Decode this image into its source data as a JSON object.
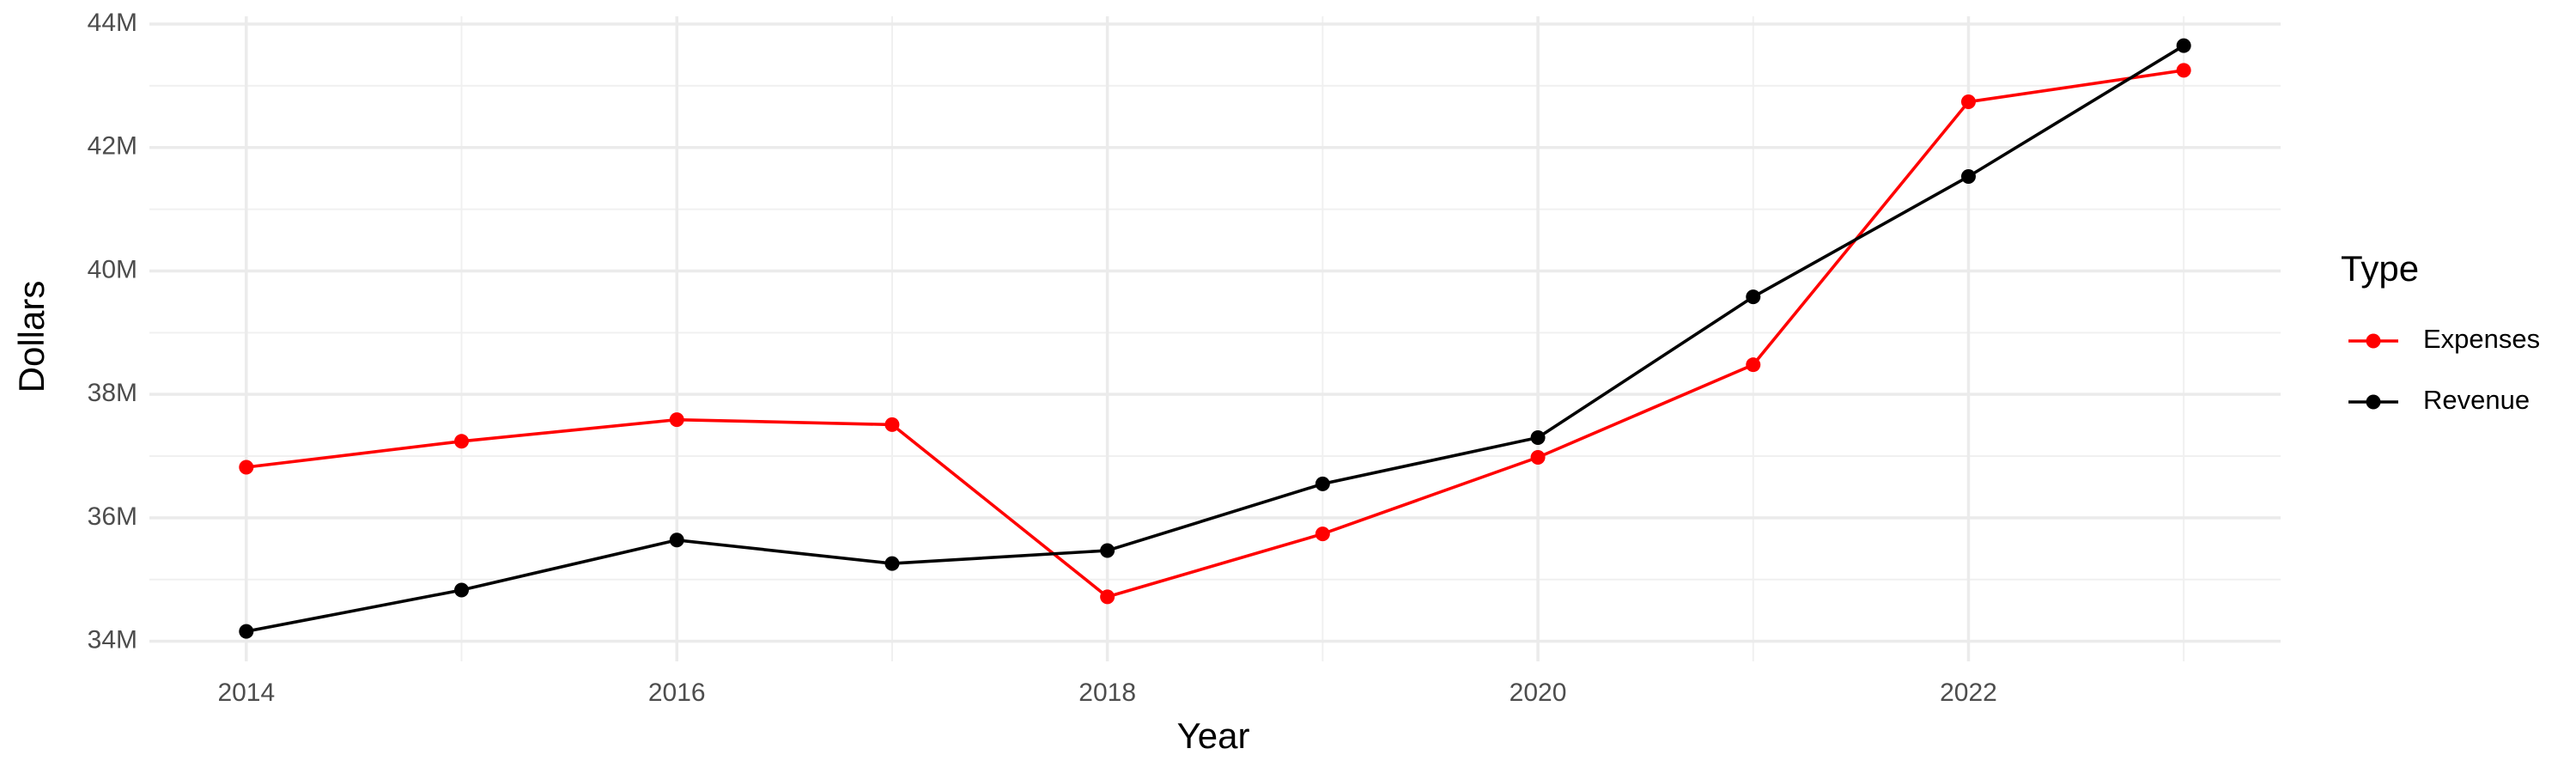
{
  "chart_data": {
    "type": "line",
    "x_label": "Year",
    "y_label": "Dollars",
    "x": [
      2014,
      2015,
      2016,
      2017,
      2018,
      2019,
      2020,
      2021,
      2022,
      2023
    ],
    "series": [
      {
        "name": "Expenses",
        "color": "#ff0000",
        "values": [
          36820000,
          37240000,
          37590000,
          37510000,
          34720000,
          35740000,
          36980000,
          38480000,
          42740000,
          43250000
        ]
      },
      {
        "name": "Revenue",
        "color": "#000000",
        "values": [
          34160000,
          34830000,
          35640000,
          35260000,
          35470000,
          36550000,
          37300000,
          39580000,
          41530000,
          43650000
        ]
      }
    ],
    "xlim": [
      2013.55,
      2023.45
    ],
    "xticks": [
      2014,
      2016,
      2018,
      2020,
      2022
    ],
    "ylim": [
      33675000,
      44125000
    ],
    "yticks": [
      {
        "value": 34000000,
        "label": "34M"
      },
      {
        "value": 36000000,
        "label": "36M"
      },
      {
        "value": 38000000,
        "label": "38M"
      },
      {
        "value": 40000000,
        "label": "40M"
      },
      {
        "value": 42000000,
        "label": "42M"
      },
      {
        "value": 44000000,
        "label": "44M"
      }
    ],
    "legend_title": "Type",
    "legend_position": "right",
    "grid": true
  }
}
